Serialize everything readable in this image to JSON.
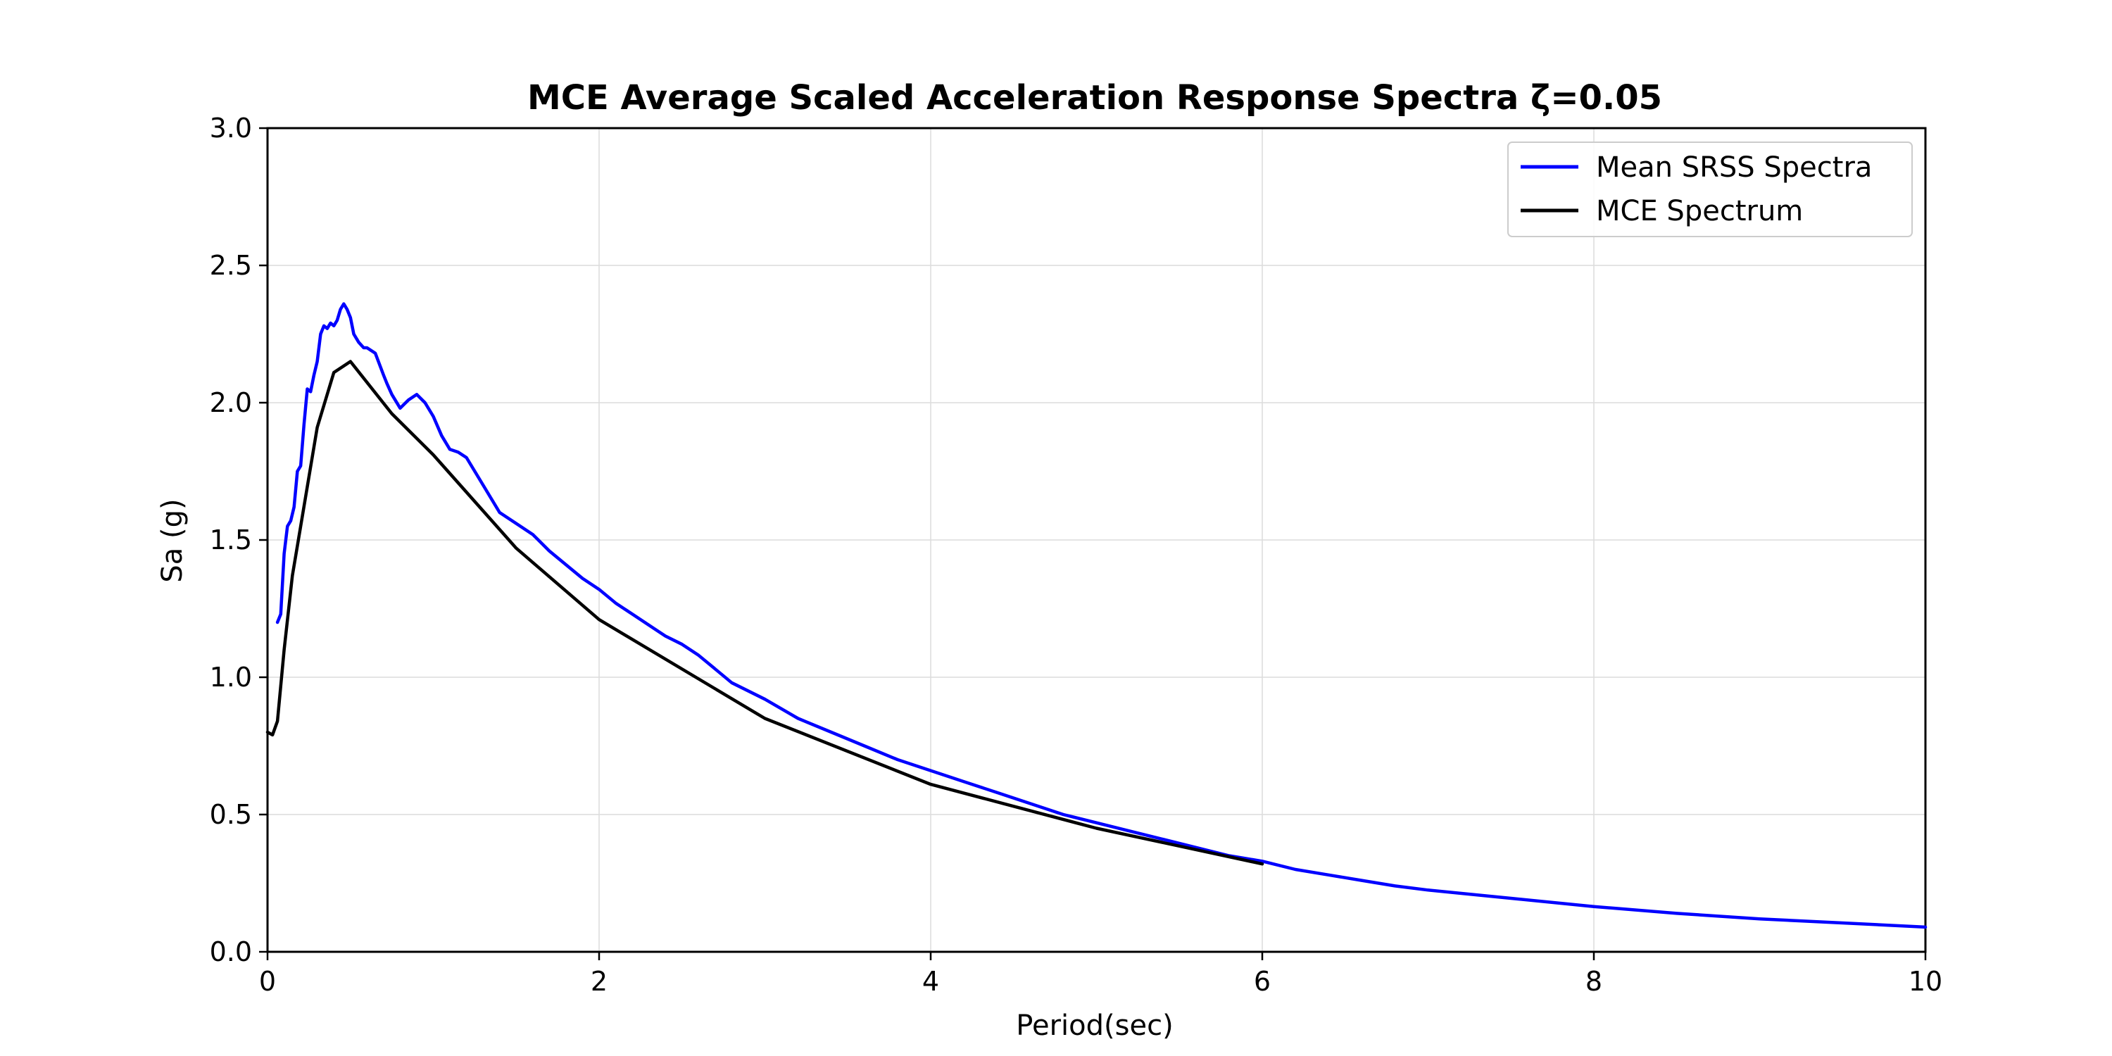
{
  "chart_data": {
    "type": "line",
    "title": "MCE Average Scaled Acceleration Response Spectra ζ=0.05",
    "xlabel": "Period(sec)",
    "ylabel": "Sa (g)",
    "xlim": [
      0,
      10
    ],
    "ylim": [
      0,
      3.0
    ],
    "xticks": [
      0,
      2,
      4,
      6,
      8,
      10
    ],
    "xtick_labels": [
      "0",
      "2",
      "4",
      "6",
      "8",
      "10"
    ],
    "yticks": [
      0.0,
      0.5,
      1.0,
      1.5,
      2.0,
      2.5,
      3.0
    ],
    "ytick_labels": [
      "0.0",
      "0.5",
      "1.0",
      "1.5",
      "2.0",
      "2.5",
      "3.0"
    ],
    "grid": true,
    "legend_position": "top-right",
    "series": [
      {
        "name": "Mean SRSS Spectra",
        "color": "#0000ff",
        "x": [
          0.06,
          0.08,
          0.1,
          0.12,
          0.14,
          0.16,
          0.18,
          0.2,
          0.22,
          0.24,
          0.26,
          0.28,
          0.3,
          0.32,
          0.34,
          0.36,
          0.38,
          0.4,
          0.42,
          0.44,
          0.46,
          0.48,
          0.5,
          0.52,
          0.55,
          0.58,
          0.6,
          0.65,
          0.7,
          0.72,
          0.75,
          0.8,
          0.85,
          0.9,
          0.95,
          1.0,
          1.05,
          1.1,
          1.15,
          1.2,
          1.3,
          1.4,
          1.5,
          1.6,
          1.7,
          1.8,
          1.9,
          2.0,
          2.1,
          2.2,
          2.3,
          2.4,
          2.5,
          2.6,
          2.7,
          2.8,
          3.0,
          3.2,
          3.4,
          3.6,
          3.8,
          4.0,
          4.2,
          4.4,
          4.6,
          4.8,
          5.0,
          5.2,
          5.4,
          5.6,
          5.8,
          6.0,
          6.2,
          6.4,
          6.6,
          6.8,
          7.0,
          7.5,
          8.0,
          8.5,
          9.0,
          9.5,
          10.0
        ],
        "values": [
          1.2,
          1.23,
          1.45,
          1.55,
          1.57,
          1.62,
          1.75,
          1.77,
          1.92,
          2.05,
          2.04,
          2.1,
          2.15,
          2.25,
          2.28,
          2.27,
          2.29,
          2.28,
          2.3,
          2.34,
          2.36,
          2.34,
          2.31,
          2.25,
          2.22,
          2.2,
          2.2,
          2.18,
          2.1,
          2.07,
          2.03,
          1.98,
          2.01,
          2.03,
          2.0,
          1.95,
          1.88,
          1.83,
          1.82,
          1.8,
          1.7,
          1.6,
          1.56,
          1.52,
          1.46,
          1.41,
          1.36,
          1.32,
          1.27,
          1.23,
          1.19,
          1.15,
          1.12,
          1.08,
          1.03,
          0.98,
          0.92,
          0.85,
          0.8,
          0.75,
          0.7,
          0.66,
          0.62,
          0.58,
          0.54,
          0.5,
          0.47,
          0.44,
          0.41,
          0.38,
          0.35,
          0.33,
          0.3,
          0.28,
          0.26,
          0.24,
          0.225,
          0.195,
          0.165,
          0.14,
          0.12,
          0.105,
          0.09
        ]
      },
      {
        "name": "MCE Spectrum",
        "color": "#000000",
        "x": [
          0.0,
          0.03,
          0.06,
          0.1,
          0.15,
          0.2,
          0.3,
          0.4,
          0.5,
          0.75,
          1.0,
          1.5,
          2.0,
          3.0,
          4.0,
          5.0,
          6.0
        ],
        "values": [
          0.8,
          0.79,
          0.84,
          1.1,
          1.37,
          1.55,
          1.91,
          2.11,
          2.15,
          1.96,
          1.81,
          1.47,
          1.21,
          0.85,
          0.61,
          0.45,
          0.32
        ]
      }
    ]
  }
}
